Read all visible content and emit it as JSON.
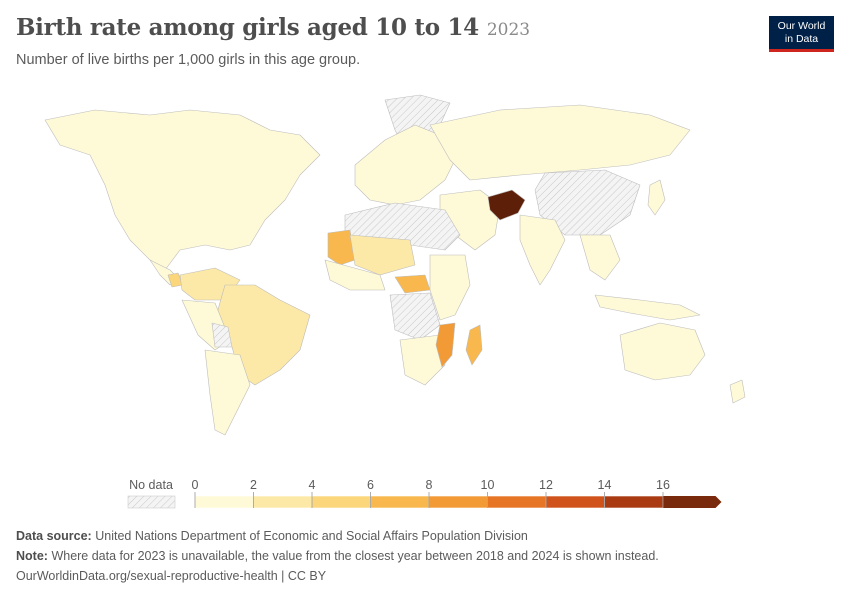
{
  "header": {
    "title": "Birth rate among girls aged 10 to 14",
    "year": "2023",
    "subtitle": "Number of live births per 1,000 girls in this age group."
  },
  "logo": {
    "line1": "Our World",
    "line2": "in Data",
    "bg": "#002147",
    "accent": "#ce261e"
  },
  "legend": {
    "no_data_label": "No data",
    "ticks": [
      "0",
      "2",
      "4",
      "6",
      "8",
      "10",
      "12",
      "14",
      "16"
    ],
    "colors": [
      "#fef9d6",
      "#fde9a7",
      "#fbd67b",
      "#f8b84d",
      "#f29a35",
      "#e67526",
      "#cf531a",
      "#a93a12",
      "#7a2a0c"
    ]
  },
  "chart_data": {
    "type": "choropleth",
    "title": "Birth rate among girls aged 10 to 14",
    "subtitle": "Number of live births per 1,000 girls in this age group.",
    "year": "2023",
    "bins": [
      0,
      2,
      4,
      6,
      8,
      10,
      12,
      14,
      16
    ],
    "regions": [
      {
        "name": "Afghanistan",
        "bin": "16+"
      },
      {
        "name": "Mozambique",
        "bin": "8-10"
      },
      {
        "name": "Madagascar",
        "bin": "6-8"
      },
      {
        "name": "Mauritania",
        "bin": "6-8"
      },
      {
        "name": "Central African Republic",
        "bin": "6-8"
      },
      {
        "name": "Mali",
        "bin": "2-4"
      },
      {
        "name": "Niger",
        "bin": "2-4"
      },
      {
        "name": "Nicaragua",
        "bin": "4-6"
      },
      {
        "name": "Bolivia",
        "bin": "2-4"
      },
      {
        "name": "Venezuela",
        "bin": "2-4"
      },
      {
        "name": "Brazil",
        "bin": "2-4"
      },
      {
        "name": "China",
        "bin": "no data"
      },
      {
        "name": "Libya",
        "bin": "no data"
      },
      {
        "name": "Sudan",
        "bin": "no data"
      },
      {
        "name": "DR Congo",
        "bin": "no data"
      }
    ]
  },
  "footer": {
    "source_label": "Data source:",
    "source_text": "United Nations Department of Economic and Social Affairs Population Division",
    "note_label": "Note:",
    "note_text": "Where data for 2023 is unavailable, the value from the closest year between 2018 and 2024 is shown instead.",
    "credit": "OurWorldinData.org/sexual-reproductive-health | CC BY"
  }
}
